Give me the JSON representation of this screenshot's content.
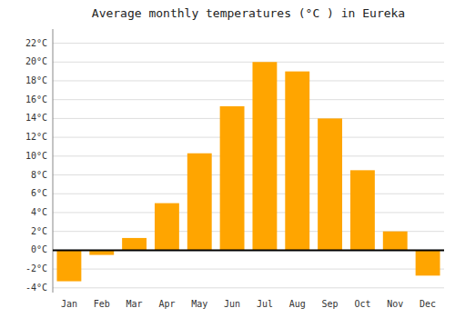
{
  "chart_data": {
    "type": "bar",
    "title": "Average monthly temperatures (°C ) in Eureka",
    "categories": [
      "Jan",
      "Feb",
      "Mar",
      "Apr",
      "May",
      "Jun",
      "Jul",
      "Aug",
      "Sep",
      "Oct",
      "Nov",
      "Dec"
    ],
    "values": [
      -3.3,
      -0.5,
      1.3,
      5.0,
      10.3,
      15.3,
      20.0,
      19.0,
      14.0,
      8.5,
      2.0,
      -2.7
    ],
    "color": "#FFA500",
    "ylim": [
      -4.5,
      23.5
    ],
    "yticks": [
      {
        "value": -4,
        "label": "-4°C"
      },
      {
        "value": -2,
        "label": "-2°C"
      },
      {
        "value": 0,
        "label": "0°C"
      },
      {
        "value": 2,
        "label": "2°C"
      },
      {
        "value": 4,
        "label": "4°C"
      },
      {
        "value": 6,
        "label": "6°C"
      },
      {
        "value": 8,
        "label": "8°C"
      },
      {
        "value": 10,
        "label": "10°C"
      },
      {
        "value": 12,
        "label": "12°C"
      },
      {
        "value": 14,
        "label": "14°C"
      },
      {
        "value": 16,
        "label": "16°C"
      },
      {
        "value": 18,
        "label": "18°C"
      },
      {
        "value": 20,
        "label": "20°C"
      },
      {
        "value": 22,
        "label": "22°C"
      }
    ],
    "grid": true
  }
}
